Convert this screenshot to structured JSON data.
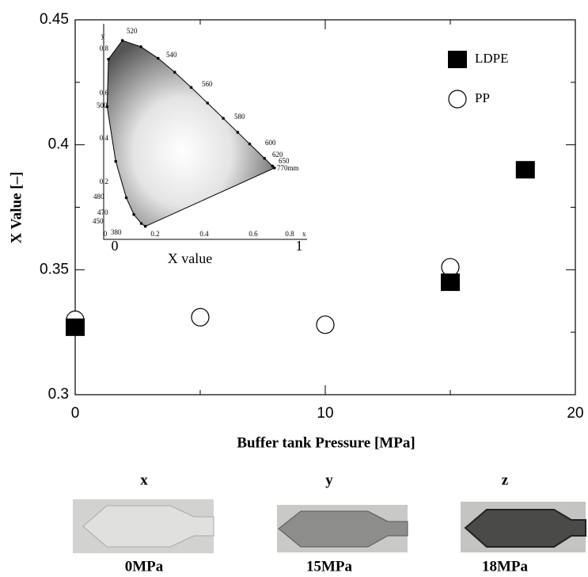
{
  "chart_data": {
    "type": "scatter",
    "xlabel": "Buffer tank Pressure [MPa]",
    "ylabel": "X Value [–]",
    "xlim": [
      0,
      20
    ],
    "ylim": [
      0.3,
      0.45
    ],
    "xticks": [
      0,
      10,
      20
    ],
    "yticks": [
      0.3,
      0.35,
      0.4,
      0.45
    ],
    "xminorticks": [
      5,
      15
    ],
    "yminorticks": [
      0.325,
      0.375,
      0.425
    ],
    "legend": "upper right",
    "series": [
      {
        "name": "LDPE",
        "marker": "square",
        "color": "#000000",
        "x": [
          0,
          15,
          18
        ],
        "values": [
          0.327,
          0.345,
          0.39
        ]
      },
      {
        "name": "PP",
        "marker": "circle",
        "color": "#000000",
        "x": [
          0,
          5,
          10,
          15
        ],
        "values": [
          0.33,
          0.331,
          0.328,
          0.351
        ]
      }
    ]
  },
  "inset": {
    "xlabel": "X value",
    "xlabel_ends": [
      "0",
      "1"
    ],
    "axis_x": "x",
    "axis_y": "y",
    "xticks": [
      "0",
      "0.2",
      "0.4",
      "0.6",
      "0.8"
    ],
    "yticks": [
      "0.2",
      "0.4",
      "0.6",
      "0.8"
    ],
    "wavelengths": [
      "520",
      "540",
      "560",
      "580",
      "600",
      "620",
      "650",
      "770mm",
      "500",
      "480",
      "470",
      "450",
      "380"
    ]
  },
  "photos": [
    {
      "top": "x",
      "bottom": "0MPa"
    },
    {
      "top": "y",
      "bottom": "15MPa"
    },
    {
      "top": "z",
      "bottom": "18MPa"
    }
  ]
}
